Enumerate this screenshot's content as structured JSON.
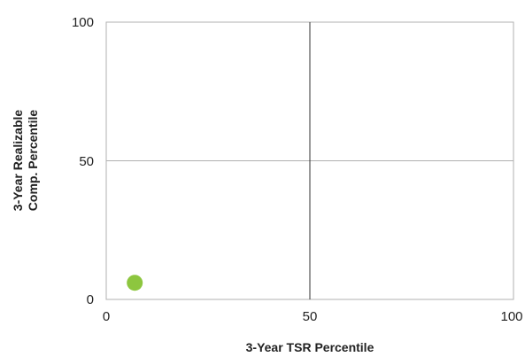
{
  "chart_data": {
    "type": "scatter",
    "xlabel": "3-Year TSR Percentile",
    "ylabel_lines": [
      "3-Year Realizable",
      "Comp. Percentile"
    ],
    "xlim": [
      0,
      100
    ],
    "ylim": [
      0,
      100
    ],
    "x_ticks": [
      "0",
      "50",
      "100"
    ],
    "y_ticks": [
      "100",
      "50",
      "0"
    ],
    "grid": true,
    "points": [
      {
        "x": 7,
        "y": 6
      }
    ],
    "point_color": "#8dc63f",
    "grid_color": "#b0b0b0",
    "divider_color": "#333333"
  }
}
